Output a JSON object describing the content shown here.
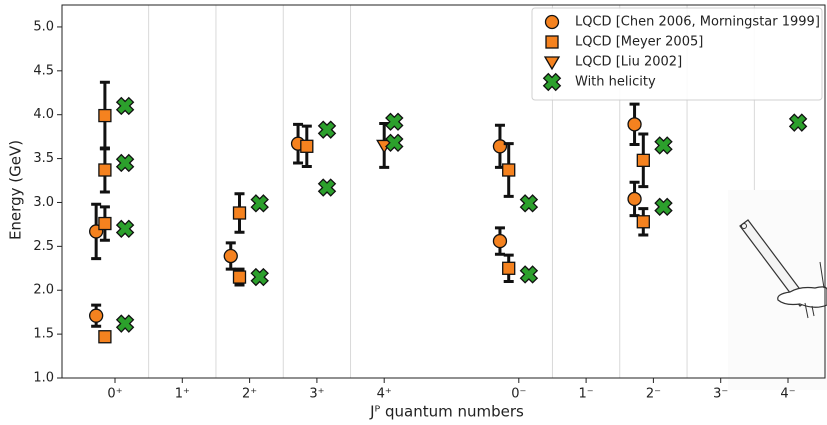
{
  "chart_data": {
    "type": "errorbar",
    "xlabel": "Jᴾ quantum numbers",
    "ylabel": "Energy (GeV)",
    "categories": [
      "0⁺",
      "1⁺",
      "2⁺",
      "3⁺",
      "4⁺",
      null,
      "0⁻",
      "1⁻",
      "2⁻",
      "3⁻",
      "4⁻"
    ],
    "ylim": [
      1.0,
      5.25
    ],
    "yticks": [
      {
        "value": 1.0,
        "label": "1.0"
      },
      {
        "value": 1.5,
        "label": "1.5"
      },
      {
        "value": 2.0,
        "label": "2.0"
      },
      {
        "value": 2.5,
        "label": "2.5"
      },
      {
        "value": 3.0,
        "label": "3.0"
      },
      {
        "value": 3.5,
        "label": "3.5"
      },
      {
        "value": 4.0,
        "label": "4.0"
      },
      {
        "value": 4.5,
        "label": "4.5"
      },
      {
        "value": 5.0,
        "label": "5.0"
      }
    ],
    "legend": "upper right",
    "series": [
      {
        "name": "LQCD [Chen 2006, Morningstar 1999]",
        "marker": "circle",
        "color": "#f5821f",
        "x": [
          "0⁺",
          "0⁺",
          "2⁺",
          "3⁺",
          "0⁻",
          "0⁻",
          "2⁻",
          "2⁻"
        ],
        "values": [
          1.71,
          2.67,
          2.39,
          3.67,
          2.56,
          3.64,
          3.04,
          3.89
        ],
        "errors": [
          0.12,
          0.31,
          0.15,
          0.22,
          0.15,
          0.24,
          0.19,
          0.23
        ]
      },
      {
        "name": "LQCD [Meyer 2005]",
        "marker": "square",
        "color": "#f5821f",
        "x": [
          "0⁺",
          "0⁺",
          "0⁺",
          "0⁺",
          "2⁺",
          "2⁺",
          "3⁺",
          "0⁻",
          "0⁻",
          "2⁻",
          "2⁻"
        ],
        "values": [
          1.47,
          2.76,
          3.37,
          3.99,
          2.15,
          2.88,
          3.64,
          2.25,
          3.37,
          2.78,
          3.48
        ],
        "errors": [
          0.05,
          0.19,
          0.25,
          0.38,
          0.09,
          0.22,
          0.23,
          0.15,
          0.3,
          0.15,
          0.3
        ]
      },
      {
        "name": "LQCD [Liu 2002]",
        "marker": "triangle_down",
        "color": "#f5821f",
        "x": [
          "4⁺"
        ],
        "values": [
          3.65
        ],
        "errors": [
          0.25
        ]
      },
      {
        "name": "With helicity",
        "marker": "x",
        "color": "#2ca02c",
        "x": [
          "0⁺",
          "0⁺",
          "0⁺",
          "0⁺",
          "2⁺",
          "2⁺",
          "3⁺",
          "3⁺",
          "4⁺",
          "4⁺",
          "0⁻",
          "0⁻",
          "2⁻",
          "2⁻",
          "4⁻"
        ],
        "values": [
          1.62,
          2.7,
          3.45,
          4.1,
          2.15,
          2.99,
          3.17,
          3.83,
          3.68,
          3.92,
          2.18,
          2.99,
          2.95,
          3.65,
          3.91
        ]
      }
    ]
  }
}
